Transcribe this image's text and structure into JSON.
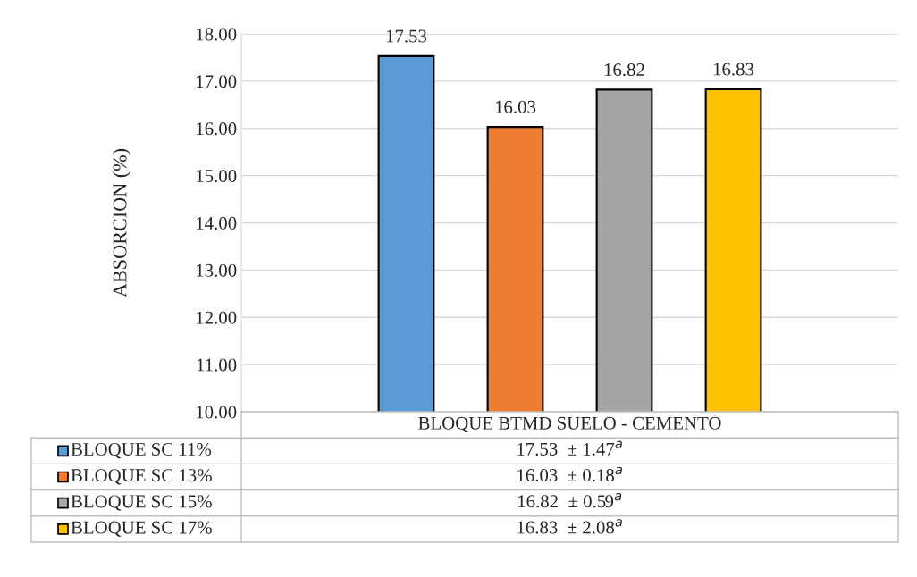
{
  "chart_data": {
    "type": "bar",
    "categories": [
      "BLOQUE BTMD SUELO - CEMENTO"
    ],
    "series": [
      {
        "name": "BLOQUE SC 11%",
        "color": "#5b9bd5",
        "values": [
          17.53
        ]
      },
      {
        "name": "BLOQUE SC 13%",
        "color": "#ed7d31",
        "values": [
          16.03
        ]
      },
      {
        "name": "BLOQUE SC 15%",
        "color": "#a5a5a5",
        "values": [
          16.82
        ]
      },
      {
        "name": "BLOQUE SC 17%",
        "color": "#ffc000",
        "values": [
          16.83
        ]
      }
    ],
    "ylabel": "ABSORCION (%)",
    "ylim": [
      10,
      18
    ],
    "yticks": [
      {
        "value": 10,
        "label": "10.00"
      },
      {
        "value": 11,
        "label": "11.00"
      },
      {
        "value": 12,
        "label": "12.00"
      },
      {
        "value": 13,
        "label": "13.00"
      },
      {
        "value": 14,
        "label": "14.00"
      },
      {
        "value": 15,
        "label": "15.00"
      },
      {
        "value": 16,
        "label": "16.00"
      },
      {
        "value": 17,
        "label": "17.00"
      },
      {
        "value": 18,
        "label": "18.00"
      }
    ],
    "grid": "y",
    "data_labels": true,
    "legend": "bottom",
    "annotations": [
      "17.53  ± 1.47$^{a}$",
      "16.03  ± 0.18$^{a}$",
      "16.82  ± 0.59$^{a}$",
      "16.83  ± 2.08$^{a}$"
    ]
  }
}
